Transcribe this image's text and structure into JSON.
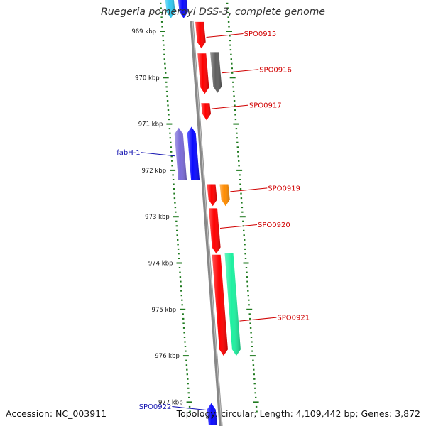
{
  "title": "Ruegeria pomeroyi DSS-3, complete genome",
  "footer": {
    "accession": "Accession: NC_003911",
    "summary": "Topology: circular; Length: 4,109,442 bp; Genes: 3,872"
  },
  "colors": {
    "backbone": "#888888",
    "tick": "#1f7a1f",
    "tick_label": "#111111",
    "label_red": "#d00000",
    "label_blue": "#1010b0",
    "gene_red": "#ff0000",
    "gene_gray": "#606060",
    "gene_blue": "#0a0aff",
    "gene_violet": "#7a6ad8",
    "gene_orange": "#ff8c00",
    "gene_aqua": "#1ef0a0",
    "gene_cyan": "#30c8f0"
  },
  "ticks": [
    {
      "label": "969 kbp",
      "kbp": 969
    },
    {
      "label": "970 kbp",
      "kbp": 970
    },
    {
      "label": "971 kbp",
      "kbp": 971
    },
    {
      "label": "972 kbp",
      "kbp": 972
    },
    {
      "label": "973 kbp",
      "kbp": 973
    },
    {
      "label": "974 kbp",
      "kbp": 974
    },
    {
      "label": "975 kbp",
      "kbp": 975
    },
    {
      "label": "976 kbp",
      "kbp": 976
    },
    {
      "label": "977 kbp",
      "kbp": 977
    }
  ],
  "genes": [
    {
      "name": "upstream-gene-1",
      "track": -2,
      "start": 968.3,
      "end": 968.72,
      "strand": "+",
      "color": "#30c8f0"
    },
    {
      "name": "upstream-gene-2",
      "track": -1,
      "start": 968.3,
      "end": 968.72,
      "strand": "+",
      "color": "#0a0aff"
    },
    {
      "name": "SPO0915",
      "track": 1,
      "start": 968.8,
      "end": 969.37,
      "strand": "+",
      "color": "#ff0000"
    },
    {
      "name": "SPO0916",
      "track": 1,
      "start": 969.48,
      "end": 970.35,
      "strand": "+",
      "color": "#ff0000"
    },
    {
      "name": "SPO0916-partner",
      "track": 2,
      "start": 969.45,
      "end": 970.33,
      "strand": "+",
      "color": "#606060"
    },
    {
      "name": "SPO0917",
      "track": 1,
      "start": 970.55,
      "end": 970.92,
      "strand": "+",
      "color": "#ff0000"
    },
    {
      "name": "fabH-1",
      "track": -2,
      "start": 971.08,
      "end": 972.21,
      "strand": "-",
      "color": "#7a6ad8"
    },
    {
      "name": "fabH-1-partner",
      "track": -1,
      "start": 971.06,
      "end": 972.21,
      "strand": "-",
      "color": "#0a0aff"
    },
    {
      "name": "SPO0919",
      "track": 1,
      "start": 972.3,
      "end": 972.77,
      "strand": "+",
      "color": "#ff0000"
    },
    {
      "name": "SPO0919-partner",
      "track": 2,
      "start": 972.3,
      "end": 972.77,
      "strand": "+",
      "color": "#ff8c00"
    },
    {
      "name": "SPO0920",
      "track": 1,
      "start": 972.82,
      "end": 973.8,
      "strand": "+",
      "color": "#ff0000"
    },
    {
      "name": "SPO0921",
      "track": 1,
      "start": 973.82,
      "end": 976.0,
      "strand": "+",
      "color": "#ff0000"
    },
    {
      "name": "SPO0921-partner",
      "track": 2,
      "start": 973.78,
      "end": 976.0,
      "strand": "+",
      "color": "#1ef0a0"
    },
    {
      "name": "SPO0922",
      "track": -1,
      "start": 977.02,
      "end": 977.5,
      "strand": "-",
      "color": "#0a0aff"
    }
  ],
  "labels": [
    {
      "text": "SPO0915",
      "side": "right",
      "kbp": 969.13,
      "target": "SPO0915",
      "color": "#d00000"
    },
    {
      "text": "SPO0916",
      "side": "right",
      "kbp": 969.9,
      "target": "SPO0916-partner",
      "color": "#d00000"
    },
    {
      "text": "SPO0917",
      "side": "right",
      "kbp": 970.67,
      "target": "SPO0917",
      "color": "#d00000"
    },
    {
      "text": "fabH-1",
      "side": "left",
      "kbp": 971.69,
      "target": "fabH-1",
      "color": "#1010b0"
    },
    {
      "text": "SPO0919",
      "side": "right",
      "kbp": 972.46,
      "target": "SPO0919-partner",
      "color": "#d00000"
    },
    {
      "text": "SPO0920",
      "side": "right",
      "kbp": 973.25,
      "target": "SPO0920",
      "color": "#d00000"
    },
    {
      "text": "SPO0921",
      "side": "right",
      "kbp": 975.25,
      "target": "SPO0921-partner",
      "color": "#d00000"
    },
    {
      "text": "SPO0922",
      "side": "left",
      "kbp": 977.17,
      "target": "SPO0922",
      "color": "#1010b0"
    }
  ]
}
